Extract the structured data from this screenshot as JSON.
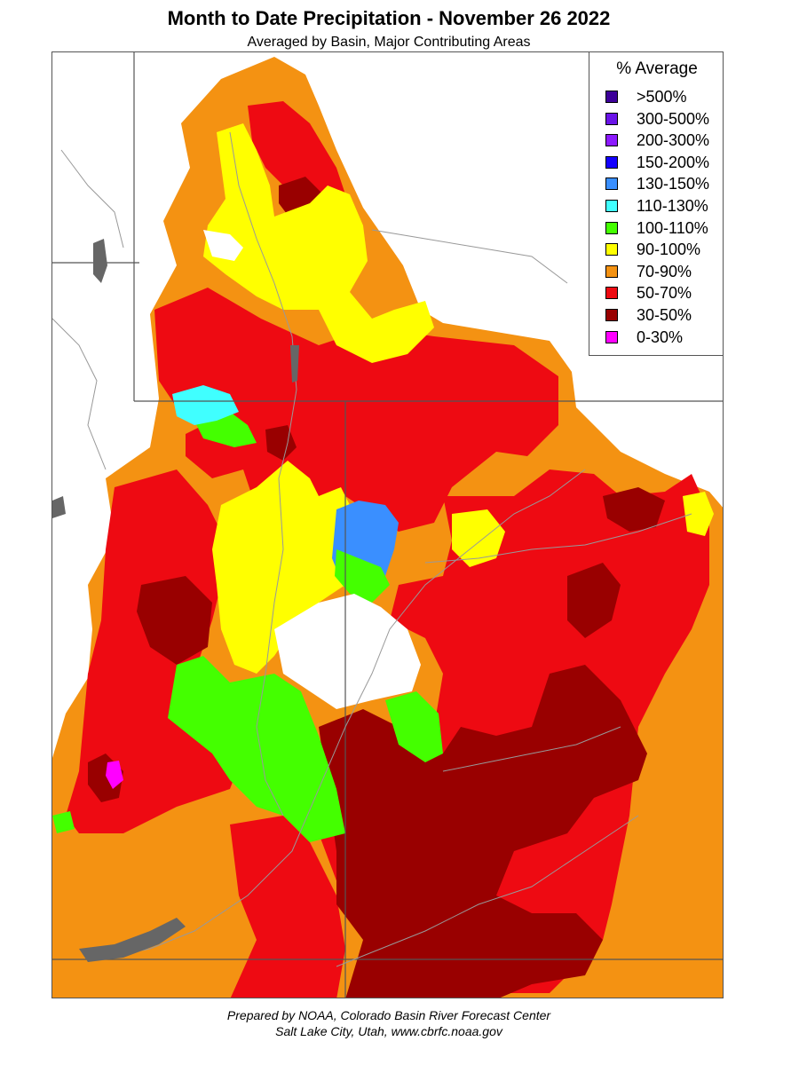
{
  "title": "Month to Date Precipitation - November 26 2022",
  "subtitle": "Averaged by Basin, Major Contributing Areas",
  "legend": {
    "title": "% Average",
    "items": [
      {
        "label": ">500%",
        "color": "#3d0099"
      },
      {
        "label": "300-500%",
        "color": "#6a14e8"
      },
      {
        "label": "200-300%",
        "color": "#8c1aff"
      },
      {
        "label": "150-200%",
        "color": "#1400ff"
      },
      {
        "label": "130-150%",
        "color": "#3a8fff"
      },
      {
        "label": "110-130%",
        "color": "#40ffff"
      },
      {
        "label": "100-110%",
        "color": "#44ff00"
      },
      {
        "label": "90-100%",
        "color": "#ffff00"
      },
      {
        "label": "70-90%",
        "color": "#f49212"
      },
      {
        "label": "50-70%",
        "color": "#ee0a12"
      },
      {
        "label": "30-50%",
        "color": "#990000"
      },
      {
        "label": "0-30%",
        "color": "#ff00ff"
      }
    ]
  },
  "footer": {
    "line1": "Prepared by NOAA, Colorado Basin River Forecast Center",
    "line2": "Salt Lake City, Utah, www.cbrfc.noaa.gov"
  },
  "map": {
    "colors": {
      "orange": "#f49212",
      "red": "#ee0a12",
      "darkred": "#990000",
      "yellow": "#ffff00",
      "green": "#44ff00",
      "cyan": "#40ffff",
      "blue": "#3a8fff",
      "magenta": "#ff00ff",
      "boundary": "#555555",
      "river": "#999999",
      "lake": "#666666"
    }
  }
}
